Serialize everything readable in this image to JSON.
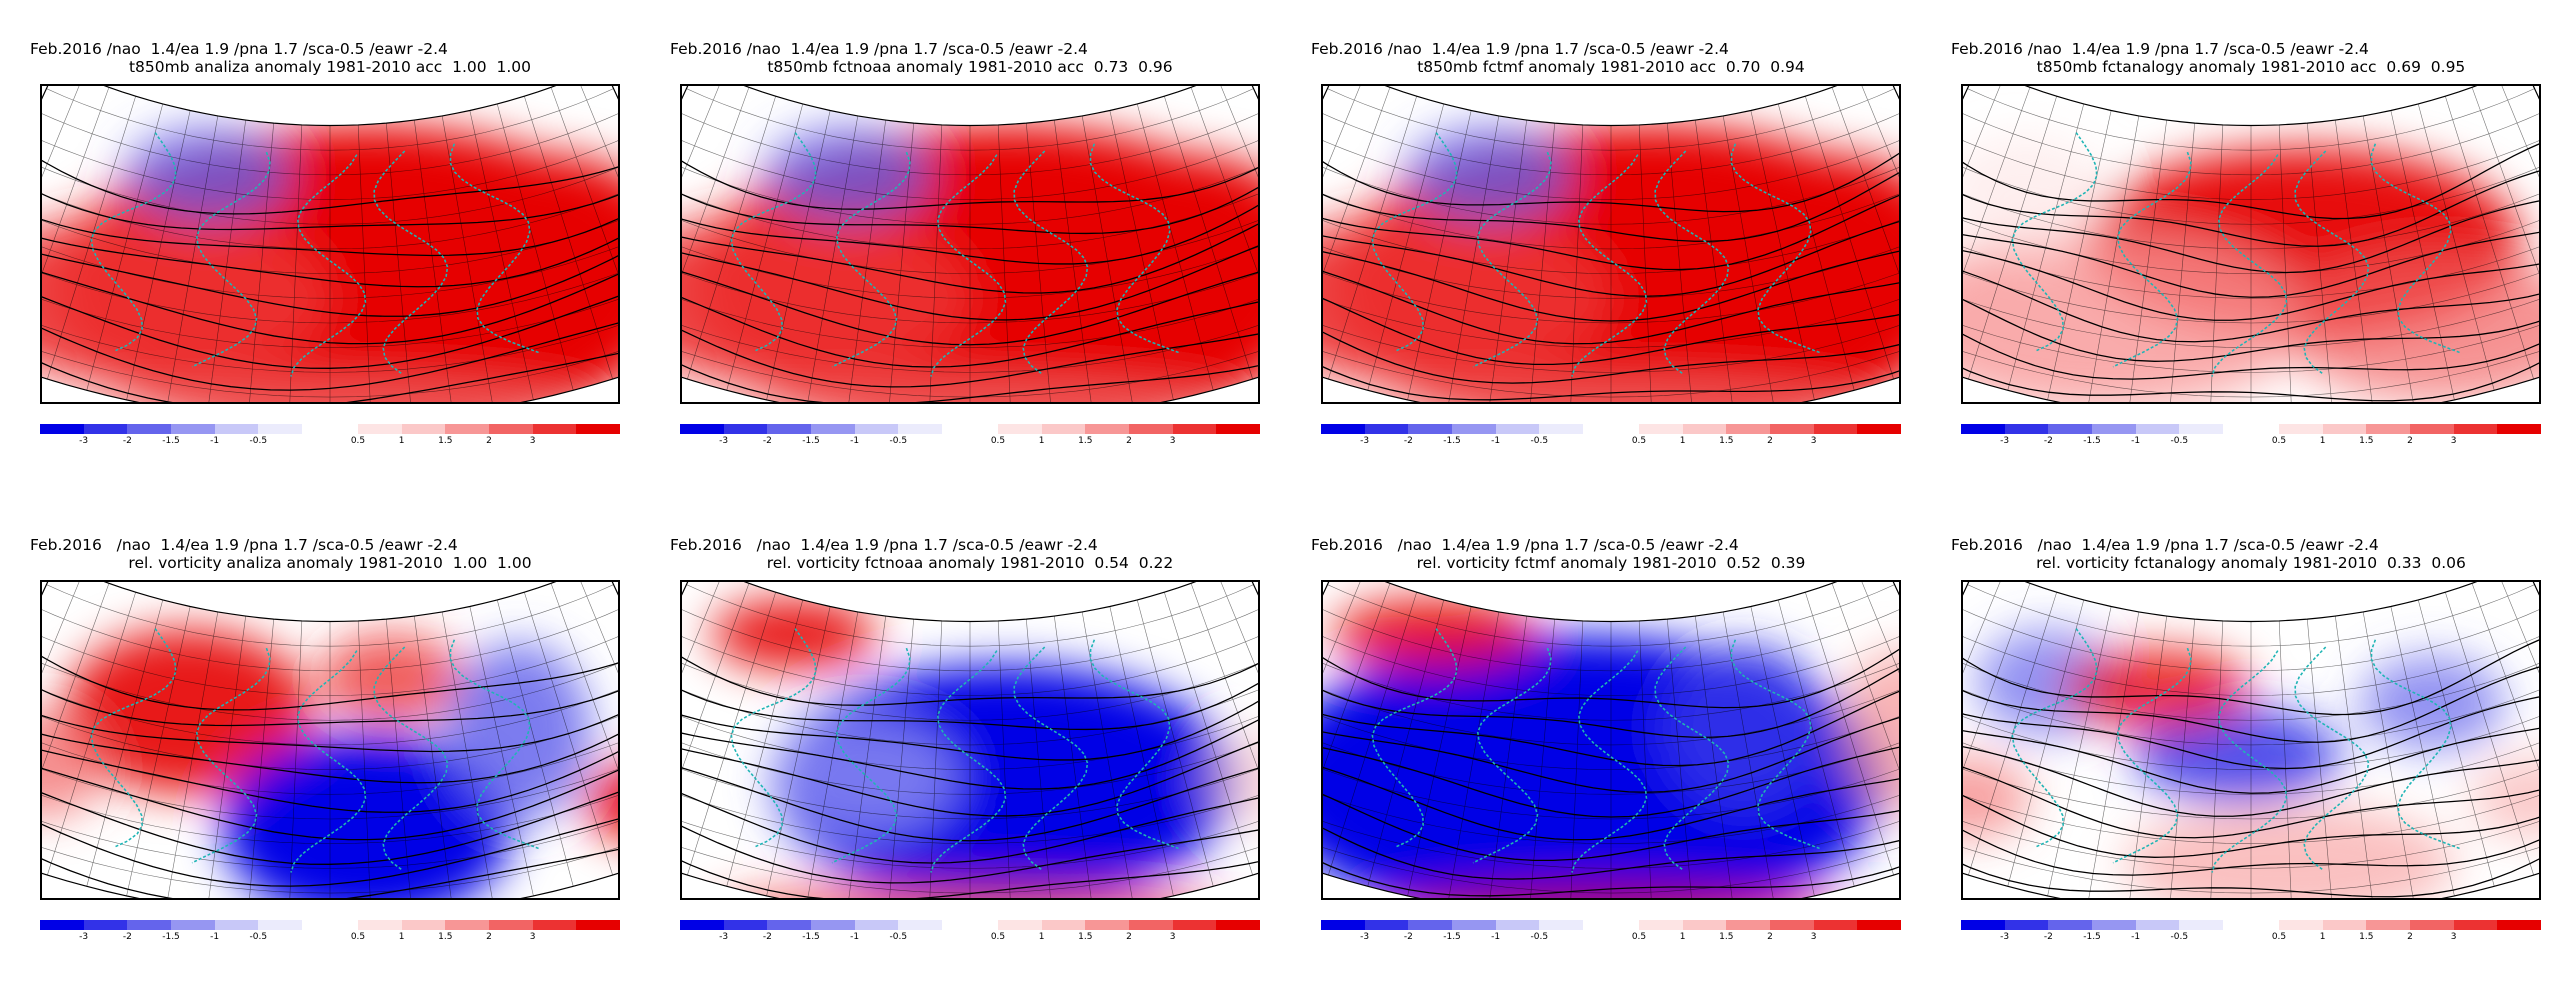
{
  "palette": {
    "negative": [
      "#0000e6",
      "#3232e8",
      "#6464ec",
      "#9696f2",
      "#c8c8f8",
      "#ebebfc"
    ],
    "positive": [
      "#fde4e4",
      "#fbc8c8",
      "#f79696",
      "#f26464",
      "#ec3232",
      "#e60000"
    ],
    "contour": "#000000",
    "coast": "#1fb5b5",
    "grid": "#000000"
  },
  "colorbar": {
    "negative_labels": [
      "-3",
      "-2",
      "-1.5",
      "-1",
      "-0.5"
    ],
    "positive_labels": [
      "0.5",
      "1",
      "1.5",
      "2",
      "3"
    ]
  },
  "panels": [
    {
      "line1": "Feb.2016 /nao  1.4/ea 1.9 /pna 1.7 /sca-0.5 /eawr -2.4",
      "line2": "t850mb analiza anomaly 1981-2010 acc  1.00  1.00",
      "variable": "t850mb",
      "dominant": "warm"
    },
    {
      "line1": "Feb.2016 /nao  1.4/ea 1.9 /pna 1.7 /sca-0.5 /eawr -2.4",
      "line2": "t850mb fctnoaa anomaly 1981-2010 acc  0.73  0.96",
      "variable": "t850mb",
      "dominant": "warm"
    },
    {
      "line1": "Feb.2016 /nao  1.4/ea 1.9 /pna 1.7 /sca-0.5 /eawr -2.4",
      "line2": "t850mb fctmf anomaly 1981-2010 acc  0.70  0.94",
      "variable": "t850mb",
      "dominant": "warm"
    },
    {
      "line1": "Feb.2016 /nao  1.4/ea 1.9 /pna 1.7 /sca-0.5 /eawr -2.4",
      "line2": "t850mb fctanalogy anomaly 1981-2010 acc  0.69  0.95",
      "variable": "t850mb",
      "dominant": "warm-weak"
    },
    {
      "line1": "Feb.2016   /nao  1.4/ea 1.9 /pna 1.7 /sca-0.5 /eawr -2.4",
      "line2": "rel. vorticity analiza anomaly 1981-2010  1.00  1.00",
      "variable": "rel. vorticity",
      "dominant": "mixed"
    },
    {
      "line1": "Feb.2016   /nao  1.4/ea 1.9 /pna 1.7 /sca-0.5 /eawr -2.4",
      "line2": "rel. vorticity fctnoaa anomaly 1981-2010  0.54  0.22",
      "variable": "rel. vorticity",
      "dominant": "cold"
    },
    {
      "line1": "Feb.2016   /nao  1.4/ea 1.9 /pna 1.7 /sca-0.5 /eawr -2.4",
      "line2": "rel. vorticity fctmf anomaly 1981-2010  0.52  0.39",
      "variable": "rel. vorticity",
      "dominant": "cold-strong"
    },
    {
      "line1": "Feb.2016   /nao  1.4/ea 1.9 /pna 1.7 /sca-0.5 /eawr -2.4",
      "line2": "rel. vorticity fctanalogy anomaly 1981-2010  0.33  0.06",
      "variable": "rel. vorticity",
      "dominant": "mixed-weak"
    }
  ]
}
